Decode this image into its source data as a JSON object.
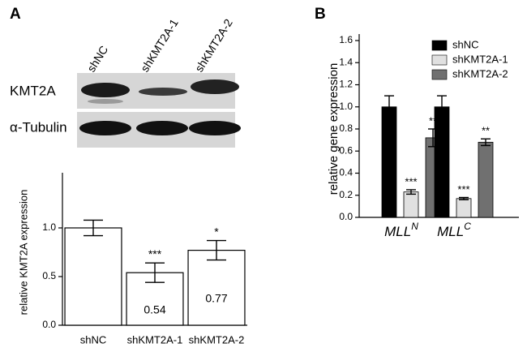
{
  "panels": [
    "A",
    "B"
  ],
  "blot": {
    "lanes": [
      "shNC",
      "shKMT2A-1",
      "shKMT2A-2"
    ],
    "rows": [
      "KMT2A",
      "α-Tubulin"
    ]
  },
  "chart_data": [
    {
      "type": "bar",
      "ylabel": "relative KMT2A expression",
      "categories": [
        "shNC",
        "shKMT2A-1",
        "shKMT2A-2"
      ],
      "values": [
        1.0,
        0.54,
        0.77
      ],
      "errors": [
        0.08,
        0.1,
        0.1
      ],
      "significance": [
        null,
        "***",
        "*"
      ],
      "color": "#ffffff",
      "ylim": [
        0,
        1.5
      ],
      "yticks": [
        {
          "value": 0,
          "label": "0.0"
        },
        {
          "value": 0.5,
          "label": "0.5"
        },
        {
          "value": 1,
          "label": "1.0"
        }
      ]
    },
    {
      "type": "bar",
      "ylabel": "relative gene expression",
      "categories": [
        "MLL",
        "MLL"
      ],
      "category_superscripts": [
        "N",
        "C"
      ],
      "series": [
        {
          "name": "shNC",
          "color": "#000000",
          "values": [
            1.0,
            1.0
          ],
          "errors": [
            0.1,
            0.1
          ],
          "significance": [
            null,
            null
          ]
        },
        {
          "name": "shKMT2A-1",
          "color": "#e0e0e0",
          "values": [
            0.23,
            0.17
          ],
          "errors": [
            0.02,
            0.01
          ],
          "significance": [
            "***",
            "***"
          ]
        },
        {
          "name": "shKMT2A-2",
          "color": "#707070",
          "values": [
            0.72,
            0.68
          ],
          "errors": [
            0.08,
            0.03
          ],
          "significance": [
            "**",
            "**"
          ]
        }
      ],
      "legend": "upper right",
      "ylim": [
        0,
        1.6
      ],
      "yticks": [
        {
          "value": 0,
          "label": "0.0"
        },
        {
          "value": 0.2,
          "label": "0.2"
        },
        {
          "value": 0.4,
          "label": "0.4"
        },
        {
          "value": 0.6,
          "label": "0.6"
        },
        {
          "value": 0.8,
          "label": "0.8"
        },
        {
          "value": 1,
          "label": "1.0"
        },
        {
          "value": 1.2,
          "label": "1.2"
        },
        {
          "value": 1.4,
          "label": "1.4"
        },
        {
          "value": 1.6,
          "label": "1.6"
        }
      ]
    }
  ]
}
